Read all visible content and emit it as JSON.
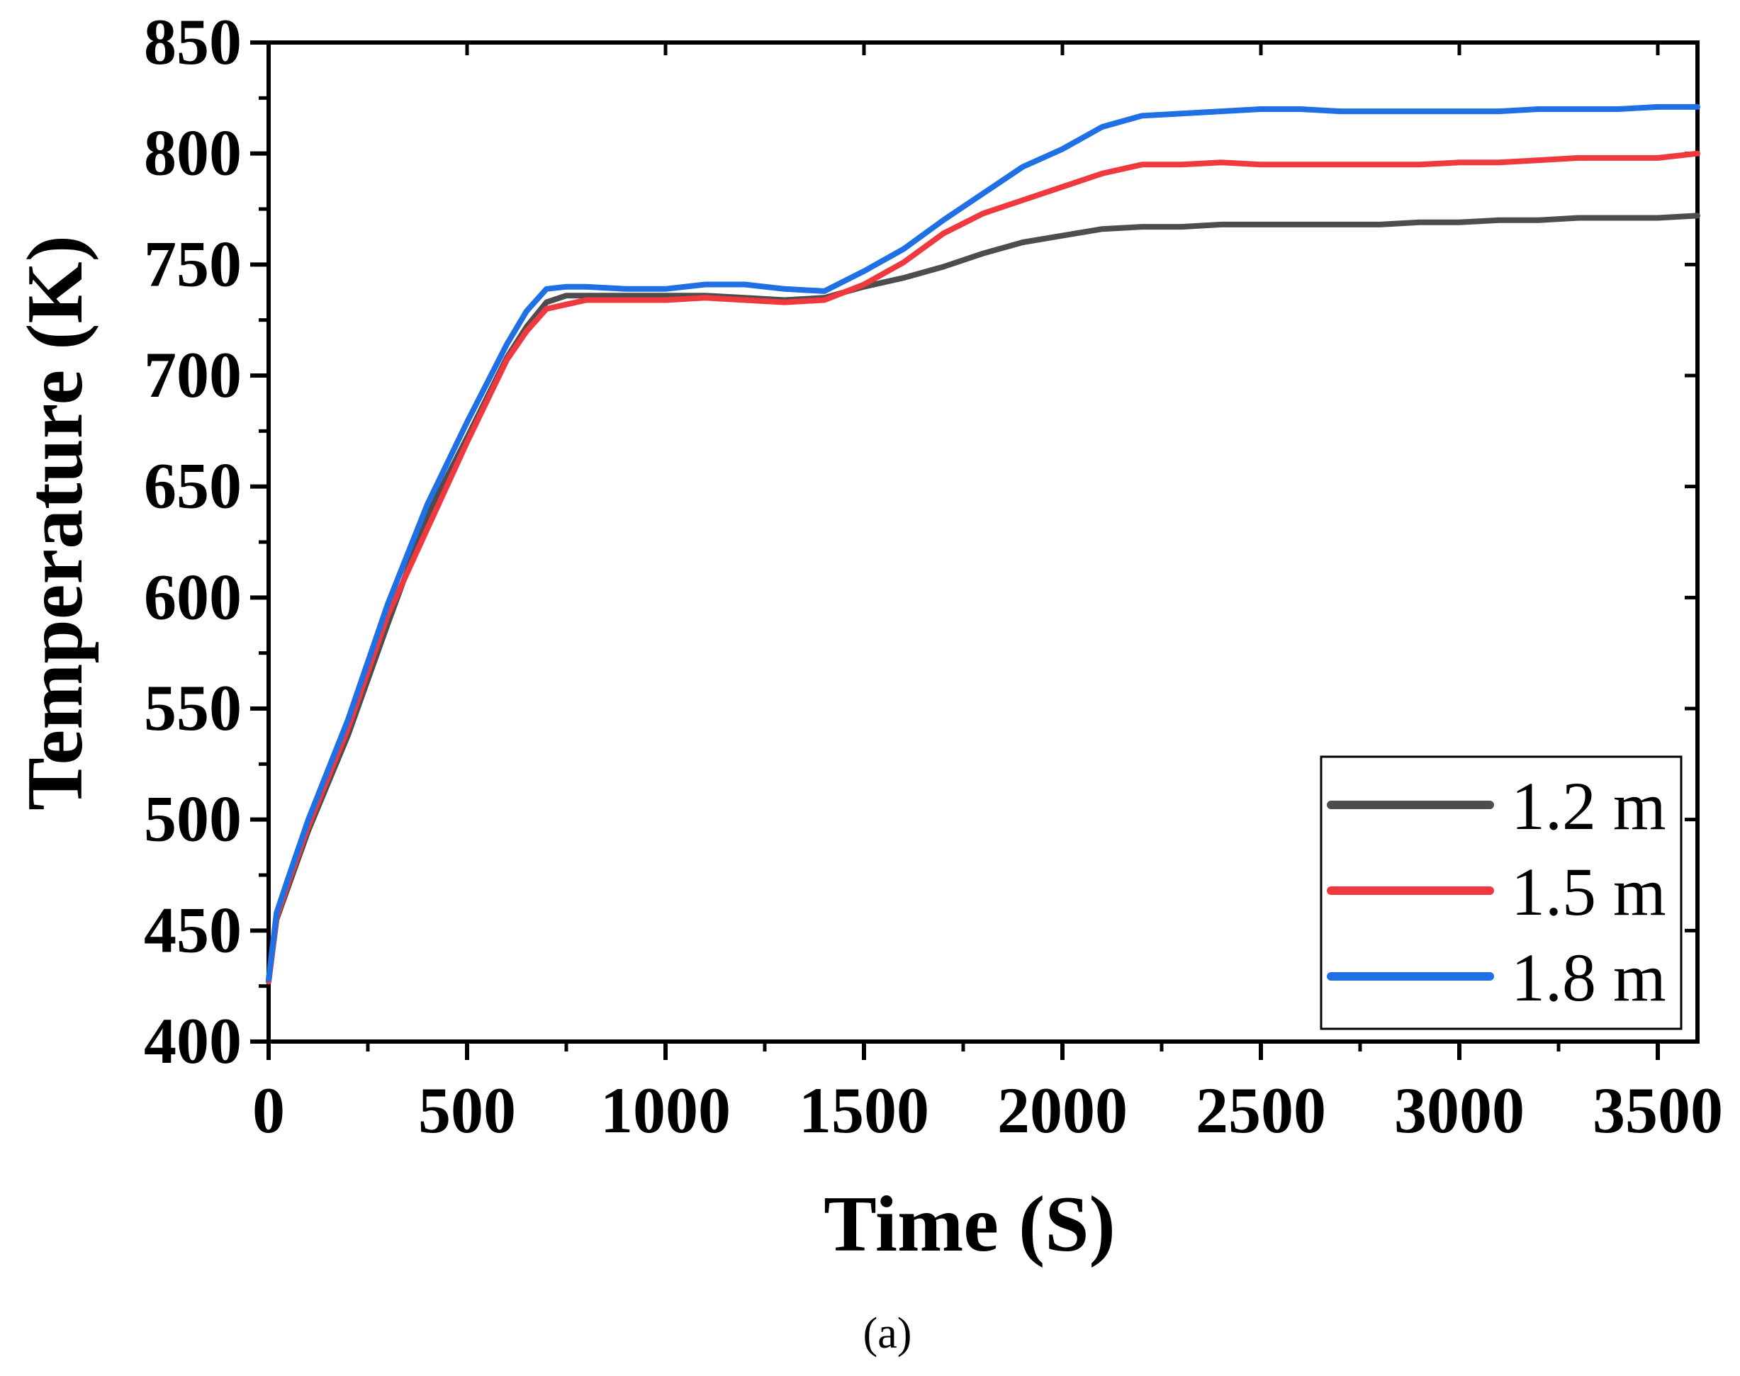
{
  "chart_data": {
    "type": "line",
    "xlabel": "Time (S)",
    "ylabel": "Temperature (K)",
    "xlim": [
      0,
      3600
    ],
    "ylim": [
      400,
      850
    ],
    "x_ticks": [
      0,
      500,
      1000,
      1500,
      2000,
      2500,
      3000,
      3500
    ],
    "y_ticks": [
      400,
      450,
      500,
      550,
      600,
      650,
      700,
      750,
      800,
      850
    ],
    "grid": false,
    "legend_position": "bottom-right",
    "caption": "(a)",
    "series": [
      {
        "name": "1.2 m",
        "color": "#4d4d4d",
        "x": [
          0,
          20,
          50,
          100,
          200,
          300,
          400,
          500,
          600,
          650,
          700,
          750,
          800,
          900,
          1000,
          1100,
          1200,
          1300,
          1400,
          1500,
          1600,
          1700,
          1800,
          1900,
          2000,
          2100,
          2200,
          2300,
          2400,
          2500,
          2600,
          2700,
          2800,
          2900,
          3000,
          3100,
          3200,
          3300,
          3400,
          3500,
          3600
        ],
        "y": [
          427,
          455,
          470,
          495,
          538,
          588,
          637,
          672,
          708,
          722,
          733,
          736,
          736,
          736,
          736,
          736,
          735,
          734,
          735,
          740,
          744,
          749,
          755,
          760,
          763,
          766,
          767,
          767,
          768,
          768,
          768,
          768,
          768,
          769,
          769,
          770,
          770,
          771,
          771,
          771,
          772
        ]
      },
      {
        "name": "1.5 m",
        "color": "#f0393f",
        "x": [
          0,
          20,
          50,
          100,
          200,
          300,
          400,
          500,
          600,
          650,
          700,
          750,
          800,
          900,
          1000,
          1100,
          1200,
          1300,
          1400,
          1500,
          1600,
          1700,
          1800,
          1900,
          2000,
          2100,
          2200,
          2300,
          2400,
          2500,
          2600,
          2700,
          2800,
          2900,
          3000,
          3100,
          3200,
          3300,
          3400,
          3500,
          3600
        ],
        "y": [
          427,
          456,
          472,
          497,
          541,
          592,
          631,
          670,
          707,
          720,
          730,
          732,
          734,
          734,
          734,
          735,
          734,
          733,
          734,
          741,
          751,
          764,
          773,
          779,
          785,
          791,
          795,
          795,
          796,
          795,
          795,
          795,
          795,
          795,
          796,
          796,
          797,
          798,
          798,
          798,
          800
        ]
      },
      {
        "name": "1.8 m",
        "color": "#1f6fe5",
        "x": [
          0,
          20,
          50,
          100,
          200,
          300,
          400,
          500,
          600,
          650,
          700,
          750,
          800,
          900,
          1000,
          1100,
          1200,
          1300,
          1400,
          1500,
          1600,
          1700,
          1800,
          1900,
          2000,
          2100,
          2200,
          2300,
          2400,
          2500,
          2600,
          2700,
          2800,
          2900,
          3000,
          3100,
          3200,
          3300,
          3400,
          3500,
          3600
        ],
        "y": [
          428,
          458,
          474,
          500,
          545,
          597,
          642,
          679,
          714,
          729,
          739,
          740,
          740,
          739,
          739,
          741,
          741,
          739,
          738,
          747,
          757,
          770,
          782,
          794,
          802,
          812,
          817,
          818,
          819,
          820,
          820,
          819,
          819,
          819,
          819,
          819,
          820,
          820,
          820,
          821,
          821
        ]
      }
    ]
  }
}
